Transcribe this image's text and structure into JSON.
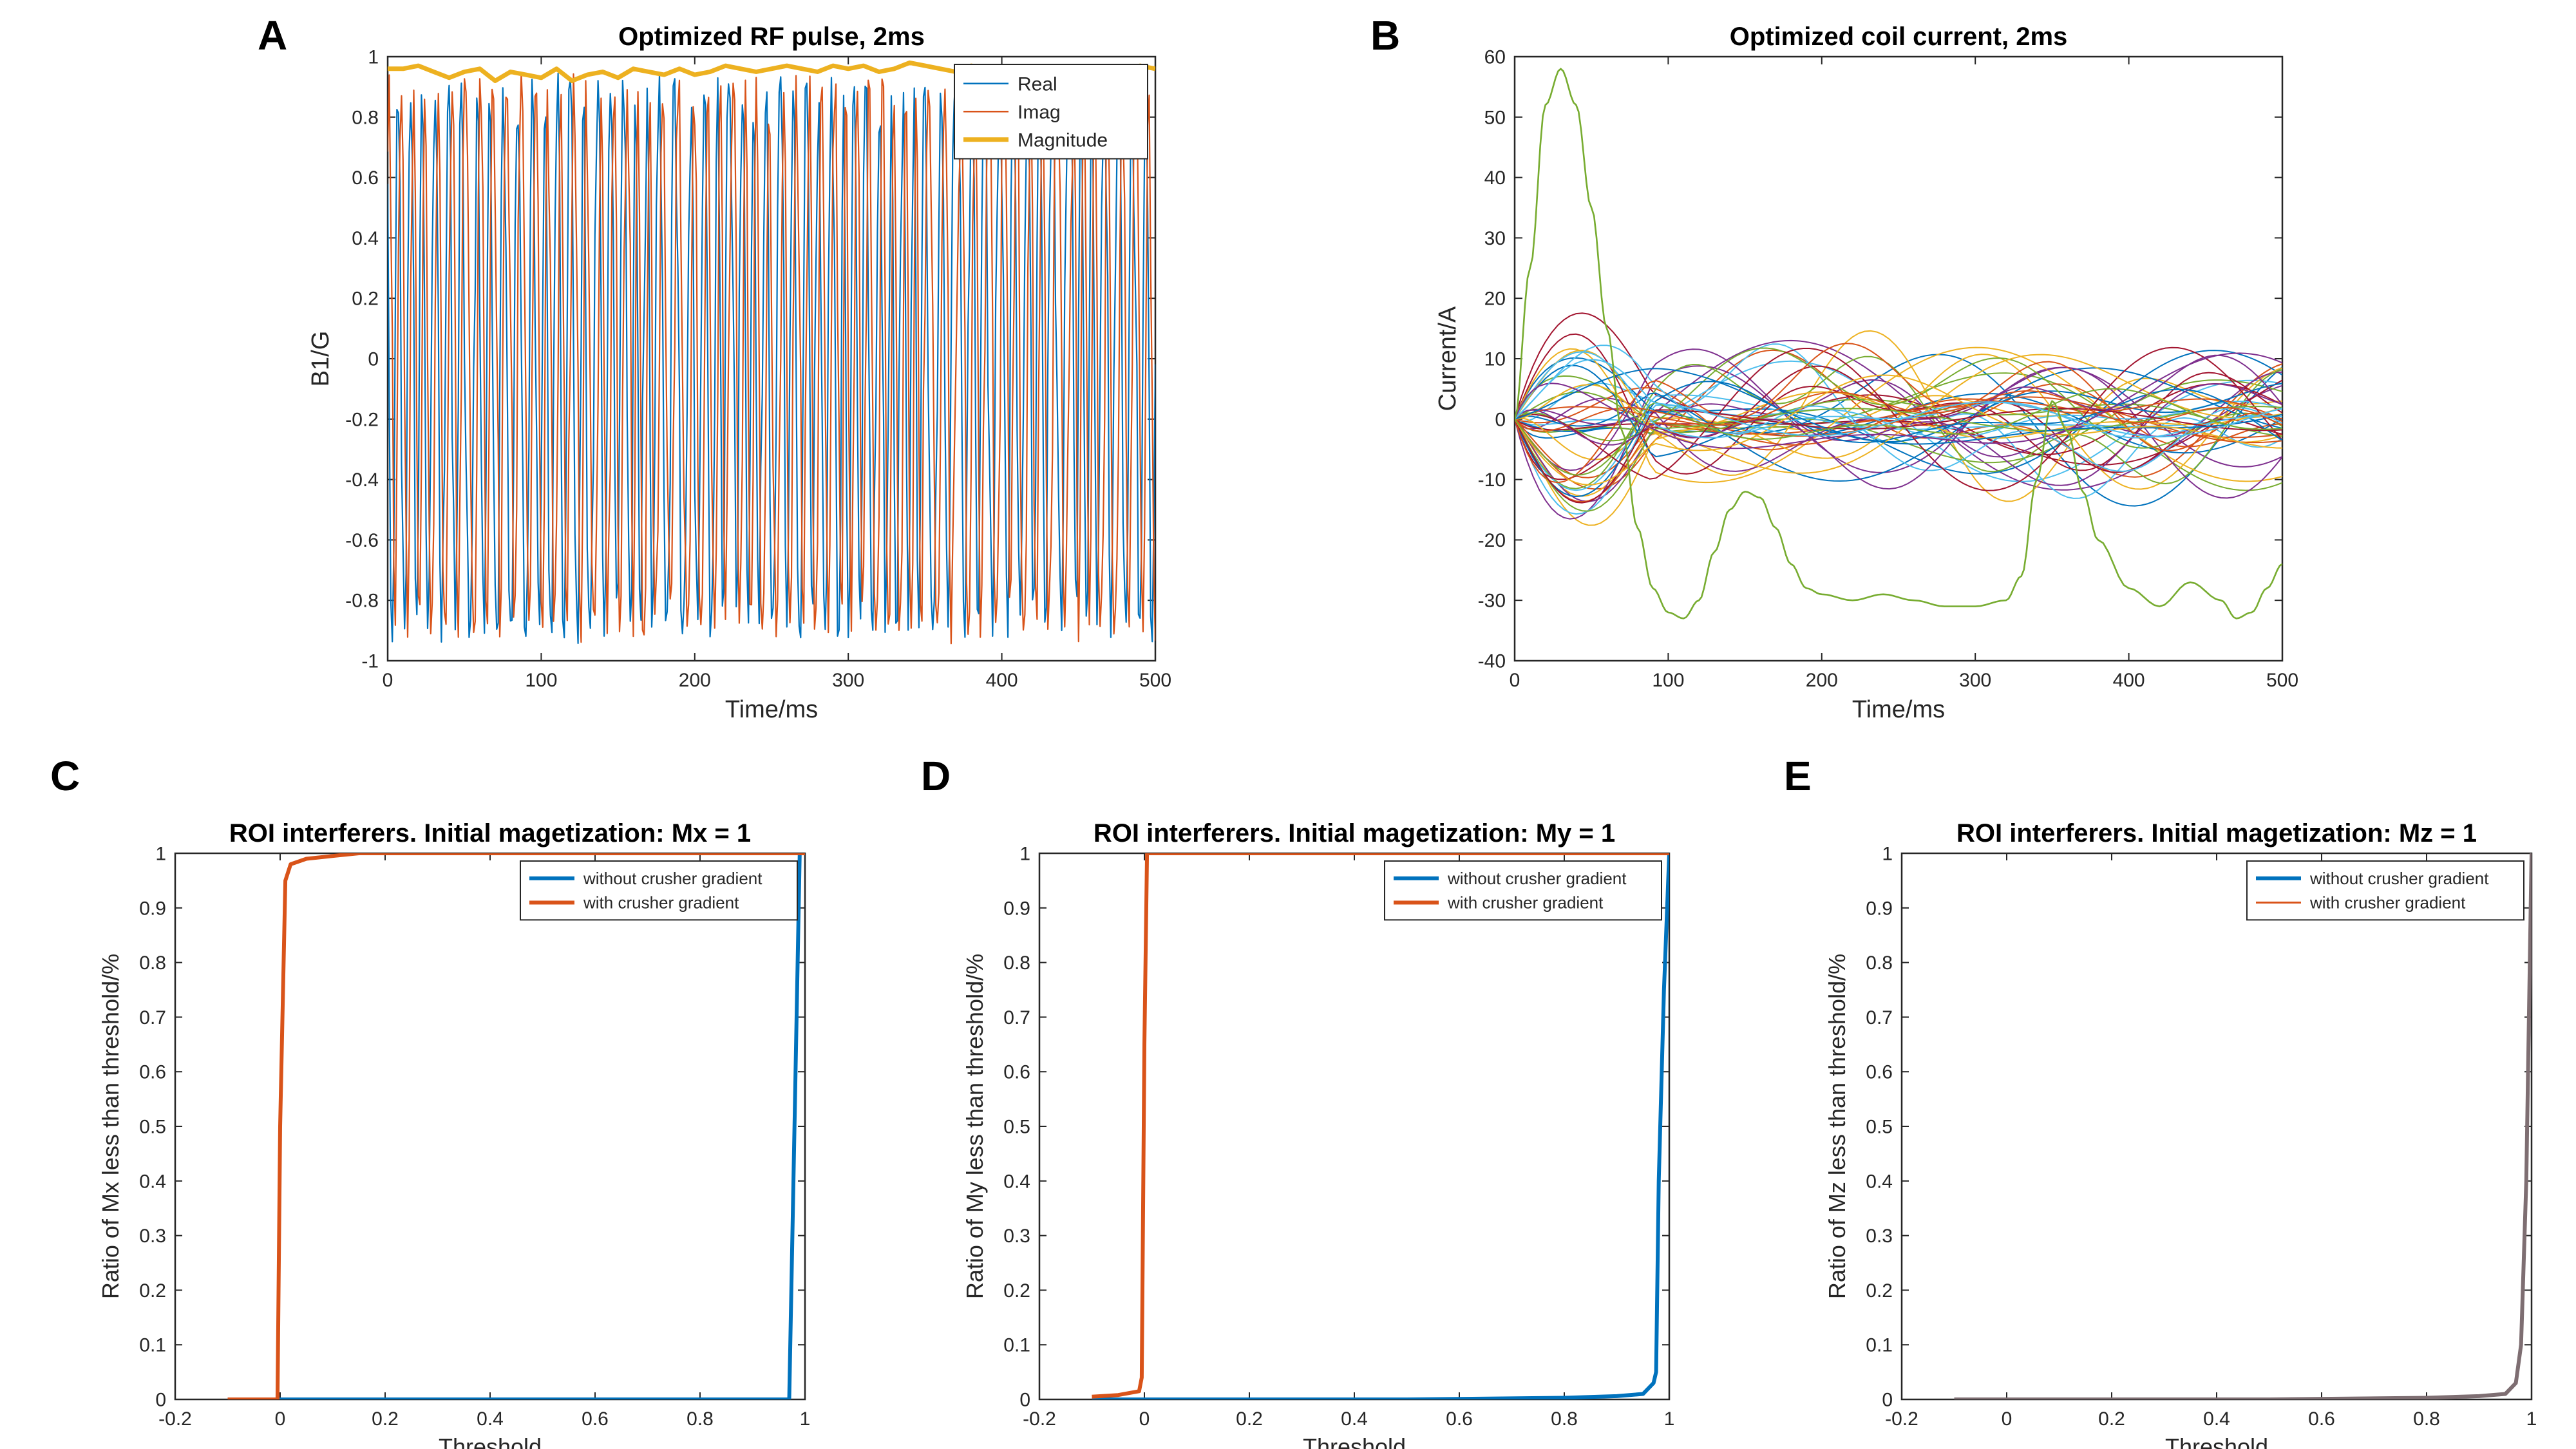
{
  "figure": {
    "panels": [
      {
        "letter": "A"
      },
      {
        "letter": "B"
      },
      {
        "letter": "C"
      },
      {
        "letter": "D"
      },
      {
        "letter": "E"
      }
    ]
  },
  "colors": {
    "real": "#0072BD",
    "imag": "#D95319",
    "magnitude": "#EDB120",
    "without_crusher": "#0072BD",
    "with_crusher": "#D95319",
    "overlap": "#7E6E72",
    "axis": "#262626"
  },
  "chart_data": [
    {
      "id": "A",
      "type": "line",
      "title": "Optimized RF pulse, 2ms",
      "xlabel": "Time/ms",
      "ylabel": "B1/G",
      "xlim": [
        0,
        500
      ],
      "ylim": [
        -1,
        1
      ],
      "xticks": [
        0,
        100,
        200,
        300,
        400,
        500
      ],
      "yticks": [
        -1,
        -0.8,
        -0.6,
        -0.4,
        -0.2,
        0,
        0.2,
        0.4,
        0.6,
        0.8,
        1
      ],
      "legend_position": "top-right",
      "series": [
        {
          "name": "Real",
          "style": "oscillating",
          "n_points": 500,
          "amplitude": 0.95,
          "line_width": "thin"
        },
        {
          "name": "Imag",
          "style": "oscillating",
          "n_points": 500,
          "amplitude": 0.95,
          "line_width": "thin"
        },
        {
          "name": "Magnitude",
          "x": [
            0,
            10,
            20,
            30,
            40,
            50,
            60,
            70,
            80,
            90,
            100,
            110,
            120,
            130,
            140,
            150,
            160,
            170,
            180,
            190,
            200,
            210,
            220,
            230,
            240,
            250,
            260,
            270,
            280,
            290,
            300,
            310,
            320,
            330,
            340,
            350,
            360,
            370,
            380,
            390,
            400,
            410,
            420,
            430,
            440,
            450,
            460,
            470,
            480,
            490,
            500
          ],
          "y": [
            0.96,
            0.96,
            0.97,
            0.95,
            0.93,
            0.95,
            0.96,
            0.92,
            0.95,
            0.94,
            0.93,
            0.96,
            0.92,
            0.94,
            0.95,
            0.93,
            0.96,
            0.95,
            0.94,
            0.96,
            0.94,
            0.95,
            0.97,
            0.96,
            0.95,
            0.96,
            0.97,
            0.96,
            0.95,
            0.97,
            0.96,
            0.97,
            0.95,
            0.96,
            0.98,
            0.97,
            0.96,
            0.95,
            0.97,
            0.96,
            0.95,
            0.96,
            0.94,
            0.96,
            0.95,
            0.96,
            0.95,
            0.94,
            0.95,
            0.97,
            0.96
          ],
          "line_width": "thick"
        }
      ]
    },
    {
      "id": "B",
      "type": "line",
      "title": "Optimized coil current, 2ms",
      "xlabel": "Time/ms",
      "ylabel": "Current/A",
      "xlim": [
        0,
        500
      ],
      "ylim": [
        -40,
        60
      ],
      "xticks": [
        0,
        100,
        200,
        300,
        400,
        500
      ],
      "yticks": [
        -40,
        -30,
        -20,
        -10,
        0,
        10,
        20,
        30,
        40,
        50,
        60
      ],
      "n_channels": 48,
      "channel_palette": [
        "#0072BD",
        "#D95319",
        "#EDB120",
        "#7E2F8E",
        "#77AC30",
        "#4DBEEE",
        "#A2142F"
      ],
      "highlight_series": {
        "color": "#77AC30",
        "x": [
          0,
          10,
          20,
          30,
          40,
          50,
          60,
          70,
          80,
          90,
          100,
          110,
          120,
          130,
          140,
          150,
          160,
          170,
          180,
          190,
          200,
          220,
          240,
          260,
          280,
          300,
          320,
          330,
          340,
          350,
          360,
          370,
          380,
          400,
          420,
          440,
          460,
          470,
          480,
          490,
          500
        ],
        "y": [
          0,
          25,
          52,
          58,
          52,
          35,
          15,
          -2,
          -18,
          -28,
          -32,
          -33,
          -30,
          -22,
          -15,
          -12,
          -13,
          -18,
          -24,
          -28,
          -29,
          -30,
          -29,
          -30,
          -31,
          -31,
          -30,
          -26,
          -10,
          3,
          -2,
          -12,
          -20,
          -28,
          -31,
          -27,
          -30,
          -33,
          -32,
          -28,
          -24
        ]
      },
      "random_channel_amplitude": 12
    },
    {
      "id": "C",
      "type": "line",
      "title": "ROI interferers. Initial magetization: Mx = 1",
      "xlabel": "Threshold",
      "ylabel": "Ratio of Mx less than threshold/%",
      "xlim": [
        -0.2,
        1
      ],
      "ylim": [
        0,
        1
      ],
      "xticks": [
        -0.2,
        0,
        0.2,
        0.4,
        0.6,
        0.8,
        1
      ],
      "yticks": [
        0,
        0.1,
        0.2,
        0.3,
        0.4,
        0.5,
        0.6,
        0.7,
        0.8,
        0.9,
        1
      ],
      "legend_position": "top-right",
      "series": [
        {
          "name": "without crusher gradient",
          "x": [
            -0.1,
            0.0,
            0.5,
            0.97,
            0.98,
            0.99,
            1.0
          ],
          "y": [
            0,
            0,
            0,
            0,
            0.5,
            1,
            1
          ]
        },
        {
          "name": "with crusher gradient",
          "x": [
            -0.1,
            -0.005,
            0.0,
            0.01,
            0.02,
            0.05,
            0.1,
            0.15,
            0.5,
            1.0
          ],
          "y": [
            0,
            0,
            0.5,
            0.95,
            0.98,
            0.99,
            0.995,
            1,
            1,
            1
          ]
        }
      ]
    },
    {
      "id": "D",
      "type": "line",
      "title": "ROI interferers. Initial magetization: My = 1",
      "xlabel": "Threshold",
      "ylabel": "Ratio of My less than threshold/%",
      "xlim": [
        -0.2,
        1
      ],
      "ylim": [
        0,
        1
      ],
      "xticks": [
        -0.2,
        0,
        0.2,
        0.4,
        0.6,
        0.8,
        1
      ],
      "yticks": [
        0,
        0.1,
        0.2,
        0.3,
        0.4,
        0.5,
        0.6,
        0.7,
        0.8,
        0.9,
        1
      ],
      "legend_position": "top-right",
      "series": [
        {
          "name": "without crusher gradient",
          "x": [
            -0.1,
            0.0,
            0.5,
            0.8,
            0.9,
            0.95,
            0.97,
            0.975,
            0.98,
            0.99,
            1.0
          ],
          "y": [
            0,
            0,
            0,
            0.003,
            0.006,
            0.01,
            0.03,
            0.05,
            0.4,
            0.75,
            1
          ]
        },
        {
          "name": "with crusher gradient",
          "x": [
            -0.1,
            -0.05,
            -0.01,
            -0.005,
            0.0,
            0.005,
            0.01,
            0.5,
            1.0
          ],
          "y": [
            0.005,
            0.008,
            0.015,
            0.04,
            0.65,
            1,
            1,
            1,
            1
          ]
        }
      ]
    },
    {
      "id": "E",
      "type": "line",
      "title": "ROI interferers. Initial magetization: Mz = 1",
      "xlabel": "Threshold",
      "ylabel": "Ratio of Mz less than threshold/%",
      "xlim": [
        -0.2,
        1
      ],
      "ylim": [
        0,
        1
      ],
      "xticks": [
        -0.2,
        0,
        0.2,
        0.4,
        0.6,
        0.8,
        1
      ],
      "yticks": [
        0,
        0.1,
        0.2,
        0.3,
        0.4,
        0.5,
        0.6,
        0.7,
        0.8,
        0.9,
        1
      ],
      "legend_position": "top-right",
      "series": [
        {
          "name": "without crusher gradient",
          "x": [
            -0.1,
            0.0,
            0.5,
            0.8,
            0.9,
            0.95,
            0.97,
            0.98,
            0.99,
            1.0
          ],
          "y": [
            0,
            0,
            0,
            0.003,
            0.006,
            0.01,
            0.03,
            0.1,
            0.4,
            1
          ]
        },
        {
          "name": "with crusher gradient",
          "x": [
            -0.1,
            0.0,
            0.5,
            0.8,
            0.9,
            0.95,
            0.97,
            0.98,
            0.99,
            1.0
          ],
          "y": [
            0,
            0,
            0,
            0.003,
            0.006,
            0.01,
            0.03,
            0.1,
            0.4,
            1
          ]
        }
      ]
    }
  ]
}
